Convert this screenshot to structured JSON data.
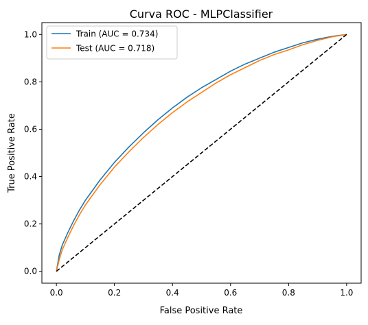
{
  "chart_data": {
    "type": "line",
    "title": "Curva ROC - MLPClassifier",
    "xlabel": "False Positive Rate",
    "ylabel": "True Positive Rate",
    "xlim": [
      -0.05,
      1.05
    ],
    "ylim": [
      -0.05,
      1.05
    ],
    "xticks": [
      0.0,
      0.2,
      0.4,
      0.6,
      0.8,
      1.0
    ],
    "xtick_labels": [
      "0.0",
      "0.2",
      "0.4",
      "0.6",
      "0.8",
      "1.0"
    ],
    "yticks": [
      0.0,
      0.2,
      0.4,
      0.6,
      0.8,
      1.0
    ],
    "ytick_labels": [
      "0.0",
      "0.2",
      "0.4",
      "0.6",
      "0.8",
      "1.0"
    ],
    "grid": false,
    "legend_position": "top-left",
    "series": [
      {
        "name": "Train (AUC = 0.734)",
        "color": "#1f77b4",
        "style": "solid",
        "points": [
          [
            0.0,
            0.0
          ],
          [
            0.01,
            0.07
          ],
          [
            0.02,
            0.11
          ],
          [
            0.04,
            0.165
          ],
          [
            0.06,
            0.215
          ],
          [
            0.08,
            0.26
          ],
          [
            0.1,
            0.3
          ],
          [
            0.15,
            0.385
          ],
          [
            0.2,
            0.46
          ],
          [
            0.25,
            0.525
          ],
          [
            0.3,
            0.585
          ],
          [
            0.35,
            0.64
          ],
          [
            0.4,
            0.69
          ],
          [
            0.45,
            0.735
          ],
          [
            0.5,
            0.775
          ],
          [
            0.55,
            0.81
          ],
          [
            0.6,
            0.845
          ],
          [
            0.65,
            0.875
          ],
          [
            0.7,
            0.9
          ],
          [
            0.75,
            0.925
          ],
          [
            0.8,
            0.945
          ],
          [
            0.85,
            0.965
          ],
          [
            0.9,
            0.98
          ],
          [
            0.95,
            0.992
          ],
          [
            1.0,
            1.0
          ]
        ]
      },
      {
        "name": "Test (AUC = 0.718)",
        "color": "#ff7f0e",
        "style": "solid",
        "points": [
          [
            0.0,
            0.0
          ],
          [
            0.01,
            0.05
          ],
          [
            0.02,
            0.09
          ],
          [
            0.04,
            0.145
          ],
          [
            0.06,
            0.195
          ],
          [
            0.08,
            0.24
          ],
          [
            0.1,
            0.28
          ],
          [
            0.15,
            0.365
          ],
          [
            0.2,
            0.44
          ],
          [
            0.25,
            0.505
          ],
          [
            0.3,
            0.565
          ],
          [
            0.35,
            0.62
          ],
          [
            0.4,
            0.67
          ],
          [
            0.45,
            0.715
          ],
          [
            0.5,
            0.755
          ],
          [
            0.55,
            0.795
          ],
          [
            0.6,
            0.83
          ],
          [
            0.65,
            0.86
          ],
          [
            0.7,
            0.89
          ],
          [
            0.75,
            0.915
          ],
          [
            0.8,
            0.935
          ],
          [
            0.85,
            0.957
          ],
          [
            0.9,
            0.975
          ],
          [
            0.95,
            0.99
          ],
          [
            1.0,
            1.0
          ]
        ]
      },
      {
        "name": "",
        "color": "#000000",
        "style": "dashed",
        "points": [
          [
            0.0,
            0.0
          ],
          [
            1.0,
            1.0
          ]
        ]
      }
    ]
  }
}
